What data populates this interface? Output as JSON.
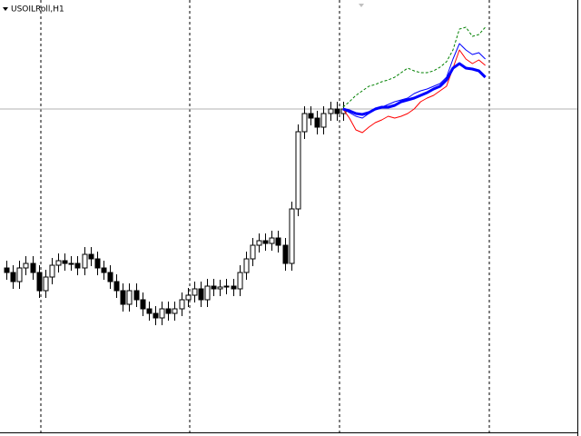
{
  "chart_data": {
    "type": "candlestick",
    "title": "USOILRoll,H1",
    "ylim": [
      0,
      480
    ],
    "open": [
      185,
      180,
      170,
      185,
      190,
      180,
      160,
      175,
      188,
      193,
      190,
      190,
      185,
      200,
      195,
      185,
      180,
      170,
      160,
      145,
      160,
      150,
      140,
      135,
      130,
      140,
      135,
      140,
      150,
      155,
      162,
      150,
      165,
      162,
      164,
      165,
      162,
      180,
      195,
      210,
      215,
      212,
      218,
      210,
      190,
      250,
      335,
      355,
      350,
      340,
      355,
      360,
      355
    ],
    "high": [
      193,
      188,
      193,
      198,
      198,
      188,
      183,
      196,
      201,
      201,
      198,
      198,
      208,
      208,
      203,
      193,
      188,
      178,
      168,
      168,
      168,
      158,
      148,
      143,
      148,
      148,
      148,
      158,
      163,
      170,
      170,
      173,
      173,
      172,
      173,
      173,
      188,
      203,
      218,
      223,
      223,
      226,
      226,
      218,
      258,
      343,
      363,
      363,
      358,
      363,
      368,
      368,
      368
    ],
    "low": [
      172,
      162,
      162,
      177,
      172,
      152,
      152,
      167,
      180,
      182,
      182,
      177,
      177,
      187,
      177,
      172,
      162,
      152,
      137,
      137,
      142,
      132,
      127,
      122,
      122,
      127,
      127,
      132,
      142,
      147,
      142,
      142,
      154,
      154,
      156,
      154,
      154,
      172,
      187,
      202,
      204,
      204,
      202,
      182,
      182,
      242,
      327,
      342,
      332,
      332,
      347,
      347,
      347
    ],
    "close": [
      180,
      170,
      185,
      190,
      180,
      160,
      175,
      188,
      193,
      190,
      190,
      185,
      200,
      195,
      185,
      180,
      170,
      160,
      145,
      160,
      150,
      140,
      135,
      130,
      140,
      135,
      140,
      150,
      155,
      162,
      150,
      165,
      162,
      164,
      165,
      162,
      180,
      195,
      210,
      215,
      212,
      218,
      210,
      190,
      250,
      335,
      355,
      350,
      340,
      355,
      360,
      355,
      360
    ],
    "bull_color": "#ffffff",
    "bear_color": "#000000",
    "forecast_start": 52,
    "series": [
      {
        "color": "#008000",
        "dashed": true,
        "width": 1,
        "values": [
          362,
          368,
          375,
          380,
          385,
          387,
          390,
          392,
          395,
          400,
          405,
          402,
          400,
          400,
          402,
          406,
          412,
          425,
          448,
          450,
          440,
          442,
          450
        ]
      },
      {
        "color": "#ff0000",
        "dashed": false,
        "width": 1,
        "values": [
          360,
          350,
          337,
          334,
          340,
          345,
          348,
          352,
          350,
          352,
          355,
          360,
          368,
          372,
          375,
          380,
          385,
          405,
          425,
          415,
          410,
          414,
          408
        ]
      },
      {
        "color": "#0000ff",
        "dashed": false,
        "width": 1,
        "values": [
          360,
          356,
          352,
          350,
          355,
          360,
          362,
          365,
          368,
          370,
          372,
          377,
          380,
          382,
          385,
          388,
          395,
          415,
          432,
          425,
          420,
          422,
          415
        ]
      },
      {
        "color": "#0000ff",
        "dashed": false,
        "width": 3,
        "values": [
          360,
          358,
          355,
          354,
          356,
          360,
          362,
          362,
          364,
          368,
          370,
          372,
          375,
          378,
          382,
          385,
          392,
          405,
          410,
          405,
          404,
          402,
          395
        ]
      }
    ]
  }
}
